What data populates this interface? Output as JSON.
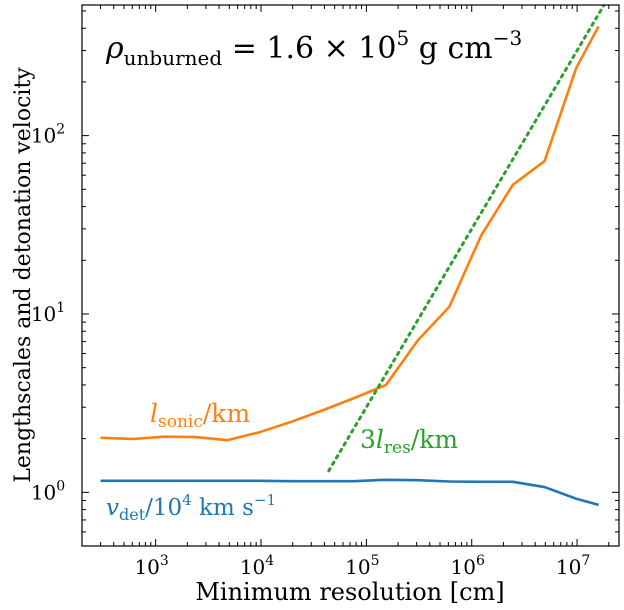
{
  "chart_data": {
    "type": "line",
    "title": "",
    "xlabel": "Minimum resolution [cm]",
    "ylabel": "Lengthscales and detonation velocity",
    "xscale": "log",
    "yscale": "log",
    "xlim": [
      200,
      25000000
    ],
    "ylim": [
      0.5,
      540
    ],
    "x_ticks": [
      {
        "value": 1000,
        "base": "10",
        "exp": "3"
      },
      {
        "value": 10000,
        "base": "10",
        "exp": "4"
      },
      {
        "value": 100000,
        "base": "10",
        "exp": "5"
      },
      {
        "value": 1000000,
        "base": "10",
        "exp": "6"
      },
      {
        "value": 10000000,
        "base": "10",
        "exp": "7"
      }
    ],
    "y_ticks": [
      {
        "value": 1,
        "base": "10",
        "exp": "0"
      },
      {
        "value": 10,
        "base": "10",
        "exp": "1"
      },
      {
        "value": 100,
        "base": "10",
        "exp": "2"
      }
    ],
    "grid": false,
    "annotation": {
      "rho": "ρ",
      "rho_sub": "unburned",
      "eq_text": " = 1.6 × 10",
      "exp": "5",
      "units": " g cm",
      "units_exp": "−3"
    },
    "series": [
      {
        "label_main": "l",
        "label_sub": "sonic",
        "label_rest": "/km",
        "color": "#ff7f0e",
        "style": "solid",
        "x": [
          300,
          600,
          1200,
          2400,
          4800,
          9600,
          19200,
          38400,
          76800,
          153600,
          307200,
          614400,
          1228800,
          2457600,
          4915200,
          9830400,
          16000000
        ],
        "y": [
          2.02,
          1.99,
          2.05,
          2.04,
          1.96,
          2.17,
          2.48,
          2.88,
          3.38,
          4.0,
          7.1,
          11.0,
          27.5,
          53.0,
          72.0,
          240.0,
          410.0
        ]
      },
      {
        "label_main": "v",
        "label_sub": "det",
        "label_rest": "/10",
        "label_exp": "4",
        "label_units": " km s",
        "label_units_exp": "−1",
        "color": "#1f77b4",
        "style": "solid",
        "x": [
          300,
          600,
          1200,
          2400,
          4800,
          9600,
          19200,
          38400,
          76800,
          153600,
          307200,
          614400,
          1228800,
          2457600,
          4915200,
          9830400,
          16000000
        ],
        "y": [
          1.16,
          1.16,
          1.16,
          1.16,
          1.16,
          1.16,
          1.155,
          1.155,
          1.155,
          1.175,
          1.17,
          1.15,
          1.145,
          1.145,
          1.07,
          0.92,
          0.85
        ]
      },
      {
        "label_prefix": "3",
        "label_main": "l",
        "label_sub": "res",
        "label_rest": "/km",
        "color": "#2ca02c",
        "style": "dotted",
        "x": [
          44000,
          18000000
        ],
        "y": [
          1.32,
          540
        ]
      }
    ]
  }
}
